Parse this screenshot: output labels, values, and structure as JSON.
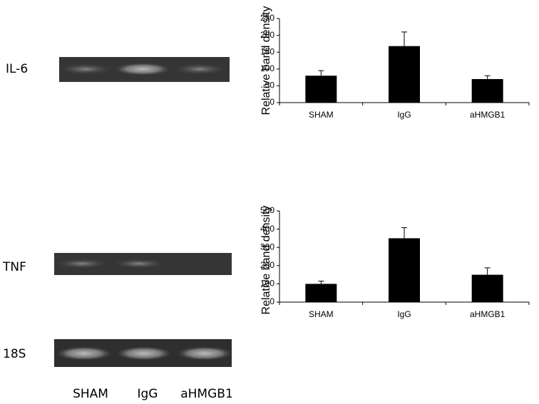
{
  "gel": {
    "rows": [
      "IL-6",
      "TNF",
      "18S"
    ],
    "lanes": [
      "SHAM",
      "IgG",
      "aHMGB1"
    ]
  },
  "chart_data": [
    {
      "type": "bar",
      "ylabel": "Relative band density",
      "categories": [
        "SHAM",
        "IgG",
        "aHMGB1"
      ],
      "values": [
        80,
        168,
        70
      ],
      "errors": [
        15,
        42,
        10
      ],
      "color": "#000000",
      "ylim": [
        0,
        250
      ],
      "yticks": [
        0,
        50,
        100,
        150,
        200,
        250
      ]
    },
    {
      "type": "bar",
      "ylabel": "Relative band density",
      "categories": [
        "SHAM",
        "IgG",
        "aHMGB1"
      ],
      "values": [
        100,
        350,
        150
      ],
      "errors": [
        15,
        58,
        38
      ],
      "color": "#000000",
      "ylim": [
        0,
        500
      ],
      "yticks": [
        0,
        100,
        200,
        300,
        400,
        500
      ]
    }
  ]
}
